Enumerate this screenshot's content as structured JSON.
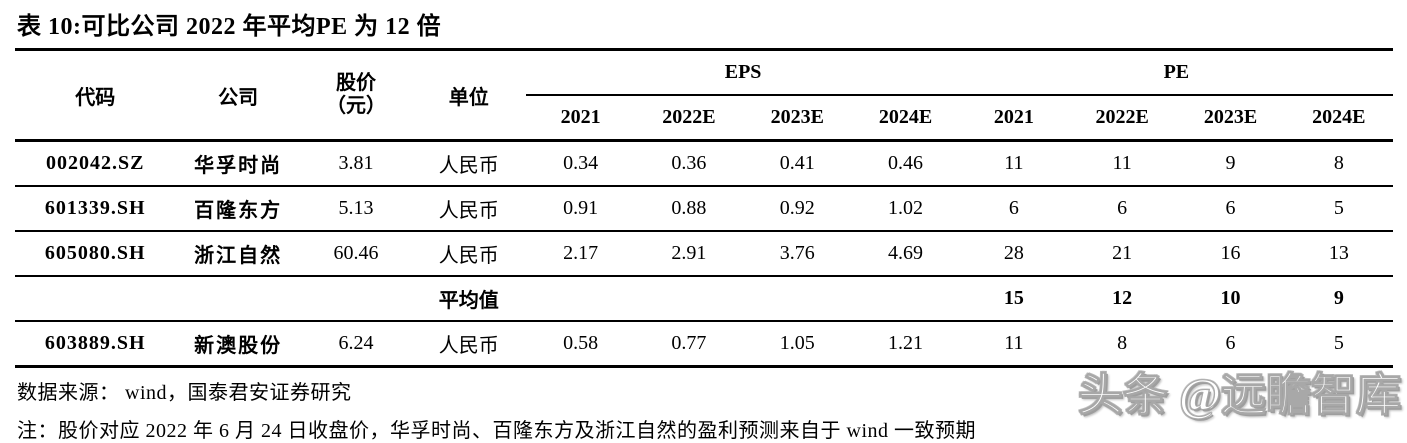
{
  "title": "表 10:可比公司 2022 年平均PE 为 12 倍",
  "table": {
    "headers": {
      "code": "代码",
      "company": "公司",
      "price_line1": "股价",
      "price_line2": "（元）",
      "unit": "单位",
      "eps_group": "EPS",
      "pe_group": "PE",
      "eps_years": [
        "2021",
        "2022E",
        "2023E",
        "2024E"
      ],
      "pe_years": [
        "2021",
        "2022E",
        "2023E",
        "2024E"
      ]
    },
    "rows": [
      {
        "code": "002042.SZ",
        "company": "华孚时尚",
        "price": "3.81",
        "unit": "人民币",
        "eps": [
          "0.34",
          "0.36",
          "0.41",
          "0.46"
        ],
        "pe": [
          "11",
          "11",
          "9",
          "8"
        ]
      },
      {
        "code": "601339.SH",
        "company": "百隆东方",
        "price": "5.13",
        "unit": "人民币",
        "eps": [
          "0.91",
          "0.88",
          "0.92",
          "1.02"
        ],
        "pe": [
          "6",
          "6",
          "6",
          "5"
        ]
      },
      {
        "code": "605080.SH",
        "company": "浙江自然",
        "price": "60.46",
        "unit": "人民币",
        "eps": [
          "2.17",
          "2.91",
          "3.76",
          "4.69"
        ],
        "pe": [
          "28",
          "21",
          "16",
          "13"
        ]
      },
      {
        "code": "",
        "company": "",
        "price": "",
        "unit": "平均值",
        "eps": [
          "",
          "",
          "",
          ""
        ],
        "pe": [
          "15",
          "12",
          "10",
          "9"
        ]
      },
      {
        "code": "603889.SH",
        "company": "新澳股份",
        "price": "6.24",
        "unit": "人民币",
        "eps": [
          "0.58",
          "0.77",
          "1.05",
          "1.21"
        ],
        "pe": [
          "11",
          "8",
          "6",
          "5"
        ]
      }
    ]
  },
  "source": "数据来源： wind，国泰君安证券研究",
  "note": "注：股价对应 2022 年 6 月 24 日收盘价，华孚时尚、百隆东方及浙江自然的盈利预测来自于 wind 一致预期",
  "watermark": "头条 @远瞻智库",
  "colors": {
    "text": "#000000",
    "rule": "#000000",
    "background": "#ffffff",
    "watermark_gray": "#a8a8a8"
  }
}
